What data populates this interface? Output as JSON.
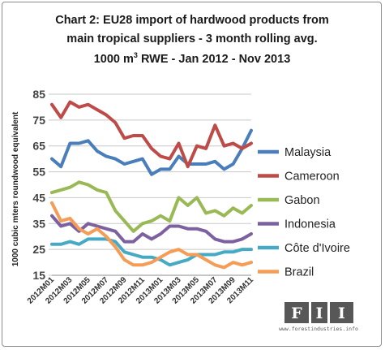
{
  "chart_data": {
    "type": "line",
    "title_lines": [
      "Chart 2: EU28 import of hardwood products from",
      "main tropical suppliers -  3 month rolling  avg."
    ],
    "subtitle_prefix": "1000 m",
    "subtitle_superscript": "3",
    "subtitle_suffix": " RWE  - Jan 2012 - Nov 2013",
    "ylabel": "1000 cubic mters roundwood equivalent",
    "ylim": [
      15,
      85
    ],
    "yticks": [
      15,
      25,
      35,
      45,
      55,
      65,
      75,
      85
    ],
    "grid": true,
    "legend_position": "right",
    "x": [
      "2012M01",
      "2012M02",
      "2012M03",
      "2012M04",
      "2012M05",
      "2012M06",
      "2012M07",
      "2012M08",
      "2012M09",
      "2012M10",
      "2012M11",
      "2012M12",
      "2013M01",
      "2013M02",
      "2013M03",
      "2013M04",
      "2013M05",
      "2013M06",
      "2013M07",
      "2013M08",
      "2013M09",
      "2013M10",
      "2013M11"
    ],
    "xtick_labels": [
      "2012M01",
      "2012M03",
      "2012M05",
      "2012M07",
      "2012M09",
      "2012M11",
      "2013M01",
      "2013M03",
      "2013M05",
      "2013M07",
      "2013M09",
      "2013M11"
    ],
    "series": [
      {
        "name": "Malaysia",
        "color": "#4a7ebb",
        "values": [
          60,
          57,
          66,
          66,
          67,
          63,
          61,
          60,
          58,
          59,
          60,
          54,
          56,
          56,
          61,
          58,
          58,
          58,
          59,
          56,
          58,
          64,
          71
        ]
      },
      {
        "name": "Cameroon",
        "color": "#be4b48",
        "values": [
          81,
          76,
          82,
          80,
          81,
          79,
          77,
          74,
          68,
          69,
          69,
          64,
          61,
          60,
          66,
          57,
          65,
          64,
          73,
          65,
          66,
          64,
          66
        ]
      },
      {
        "name": "Gabon",
        "color": "#98b954",
        "values": [
          47,
          48,
          49,
          51,
          50,
          48,
          47,
          40,
          36,
          32,
          35,
          36,
          38,
          36,
          45,
          42,
          45,
          39,
          40,
          38,
          41,
          39,
          42
        ]
      },
      {
        "name": "Indonesia",
        "color": "#7d60a0",
        "values": [
          38,
          34,
          35,
          32,
          35,
          34,
          33,
          32,
          28,
          28,
          31,
          29,
          31,
          34,
          34,
          33,
          33,
          32,
          29,
          28,
          28,
          29,
          31
        ]
      },
      {
        "name": "Côte d'Ivoire",
        "color": "#46aac5",
        "values": [
          27,
          27,
          28,
          27,
          29,
          29,
          29,
          28,
          24,
          23,
          22,
          22,
          21,
          19,
          20,
          21,
          23,
          23,
          23,
          24,
          24,
          25,
          25
        ]
      },
      {
        "name": "Brazil",
        "color": "#f59d56",
        "values": [
          43,
          36,
          37,
          33,
          31,
          33,
          30,
          26,
          21,
          19,
          19,
          20,
          22,
          24,
          25,
          23,
          23,
          21,
          19,
          18,
          20,
          19,
          20
        ]
      }
    ]
  },
  "logo": {
    "letters": [
      "F",
      "I",
      "I"
    ],
    "url": "www.forestindustries.info"
  }
}
